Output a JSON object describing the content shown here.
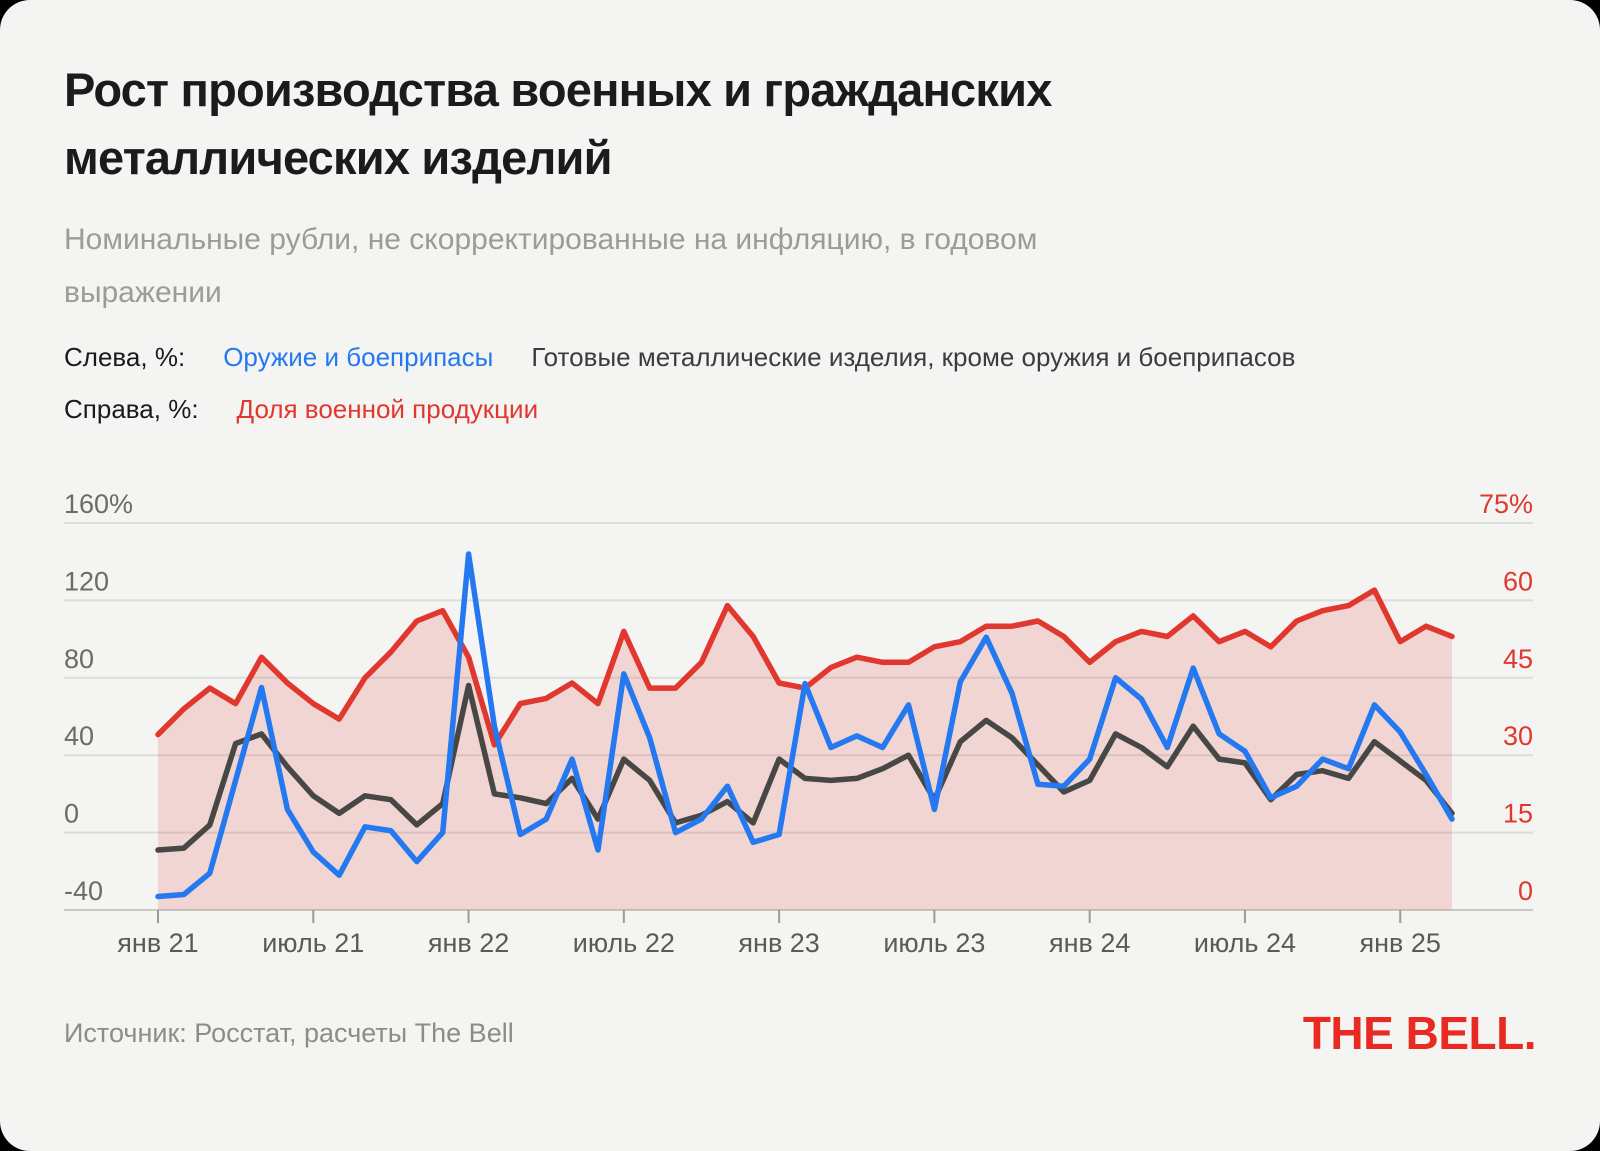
{
  "title": {
    "line1": "Рост производства военных и гражданских",
    "line2": "металлических изделий"
  },
  "subtitle": {
    "line1": "Номинальные рубли, не скорректированные на инфляцию, в годовом",
    "line2": "выражении"
  },
  "legend": {
    "rows": [
      {
        "prefix": "Слева, %:",
        "items": [
          {
            "label": "Оружие и боеприпасы",
            "color": "#2479f0"
          },
          {
            "label": "Готовые металлические изделия, кроме оружия и боеприпасов",
            "color": "#3c3c3c"
          }
        ]
      },
      {
        "prefix": "Справа, %:",
        "items": [
          {
            "label": "Доля военной продукции",
            "color": "#e0382f"
          }
        ]
      }
    ]
  },
  "footer": {
    "source": "Источник: Росстат, расчеты The Bell",
    "logo": "THE BELL."
  },
  "colors": {
    "blue": "#2479f0",
    "dark": "#474746",
    "red": "#e0382f",
    "fill": "rgba(223,57,48,0.16)",
    "grid": "#dcdcda",
    "axis": "#c9c9c7",
    "tick": "#9a9a98",
    "card_bg": "#f4f4f2"
  },
  "chart_data": {
    "type": "line",
    "title": "Рост производства военных и гражданских металлических изделий",
    "x_start": "янв 21",
    "x_end": "мар 25",
    "points_count": 51,
    "grid": true,
    "left_axis": {
      "ticks": [
        "160%",
        "120",
        "80",
        "40",
        "0",
        "-40"
      ],
      "values": [
        160,
        120,
        80,
        40,
        0,
        -40
      ],
      "range": [
        -40,
        160
      ]
    },
    "right_axis": {
      "ticks": [
        "75%",
        "60",
        "45",
        "30",
        "15",
        "0"
      ],
      "values": [
        75,
        60,
        45,
        30,
        15,
        0
      ],
      "range": [
        0,
        75
      ]
    },
    "x_ticks": [
      {
        "m": 0,
        "label": "янв 21"
      },
      {
        "m": 6,
        "label": "июль 21"
      },
      {
        "m": 12,
        "label": "янв 22"
      },
      {
        "m": 18,
        "label": "июль 22"
      },
      {
        "m": 24,
        "label": "янв 23"
      },
      {
        "m": 30,
        "label": "июль 23"
      },
      {
        "m": 36,
        "label": "янв 24"
      },
      {
        "m": 42,
        "label": "июль 24"
      },
      {
        "m": 48,
        "label": "янв 25"
      }
    ],
    "series": [
      {
        "name": "Доля военной продукции",
        "axis": "right",
        "color": "#e0382f",
        "area_fill": true,
        "values": [
          34,
          39,
          43,
          40,
          49,
          44,
          40,
          37,
          45,
          50,
          56,
          58,
          49,
          32,
          40,
          41,
          44,
          40,
          54,
          43,
          43,
          48,
          59,
          53,
          44,
          43,
          47,
          49,
          48,
          48,
          51,
          52,
          55,
          55,
          56,
          53,
          48,
          52,
          54,
          53,
          57,
          52,
          54,
          51,
          56,
          58,
          59,
          62,
          52,
          55,
          53
        ]
      },
      {
        "name": "Готовые металлические изделия, кроме оружия и боеприпасов",
        "axis": "left",
        "color": "#474746",
        "values": [
          -9,
          -8,
          4,
          46,
          51,
          34,
          19,
          10,
          19,
          17,
          4,
          15,
          76,
          20,
          18,
          15,
          28,
          7,
          38,
          27,
          5,
          9,
          16,
          5,
          38,
          28,
          27,
          28,
          33,
          40,
          17,
          47,
          58,
          49,
          35,
          21,
          27,
          51,
          44,
          34,
          55,
          38,
          36,
          17,
          30,
          32,
          28,
          47,
          37,
          27,
          10
        ]
      },
      {
        "name": "Оружие и боеприпасы",
        "axis": "left",
        "color": "#2479f0",
        "values": [
          -33,
          -32,
          -21,
          27,
          75,
          12,
          -10,
          -22,
          3,
          1,
          -15,
          0,
          144,
          55,
          -1,
          7,
          38,
          -9,
          82,
          49,
          0,
          7,
          24,
          -5,
          -1,
          77,
          44,
          50,
          44,
          66,
          12,
          78,
          101,
          72,
          25,
          24,
          38,
          80,
          69,
          44,
          85,
          51,
          42,
          18,
          24,
          38,
          33,
          66,
          52,
          30,
          7
        ]
      }
    ]
  }
}
